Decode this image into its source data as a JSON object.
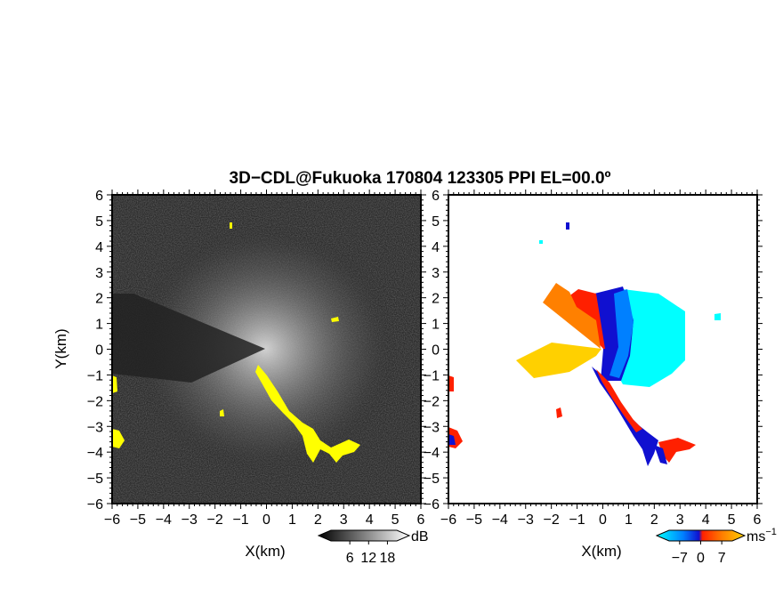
{
  "figure": {
    "title": "3D−CDL@Fukuoka 170804 123305 PPI EL=00.0º"
  },
  "chart_data": [
    {
      "type": "heatmap",
      "panel": "left",
      "field": "signal intensity",
      "xlabel": "X(km)",
      "ylabel": "Y(km)",
      "xlim": [
        -6,
        6
      ],
      "ylim": [
        -6,
        6
      ],
      "xticks": [
        "−6",
        "−5",
        "−4",
        "−3",
        "−2",
        "−1",
        "0",
        "1",
        "2",
        "3",
        "4",
        "5",
        "6"
      ],
      "yticks": [
        "6",
        "5",
        "4",
        "3",
        "2",
        "1",
        "0",
        "−1",
        "−2",
        "−3",
        "−4",
        "−5",
        "−6"
      ],
      "colormap": "grayscale",
      "background_color": "#2b2b2b",
      "highlight_color": "#ffff00",
      "colorbar": {
        "ticks": [
          "6",
          "12",
          "18"
        ],
        "tick_values": [
          6,
          12,
          18
        ],
        "range": [
          0,
          21
        ],
        "unit": "dB"
      }
    },
    {
      "type": "heatmap",
      "panel": "right",
      "field": "Doppler velocity",
      "xlabel": "X(km)",
      "xlim": [
        -6,
        6
      ],
      "ylim": [
        -6,
        6
      ],
      "xticks": [
        "−6",
        "−5",
        "−4",
        "−3",
        "−2",
        "−1",
        "0",
        "1",
        "2",
        "3",
        "4",
        "5",
        "6"
      ],
      "yticks": [
        "6",
        "5",
        "4",
        "3",
        "2",
        "1",
        "0",
        "−1",
        "−2",
        "−3",
        "−4",
        "−5",
        "−6"
      ],
      "colormap": [
        "#00ffff",
        "#0080ff",
        "#1010d0",
        "#ff2000",
        "#ff8000",
        "#ffd000"
      ],
      "colorbar": {
        "ticks": [
          "−7",
          "0",
          "7"
        ],
        "tick_values": [
          -7,
          0,
          7
        ],
        "range": [
          -10.5,
          10.5
        ],
        "unit": "ms",
        "unit_exp": "−1"
      }
    }
  ]
}
